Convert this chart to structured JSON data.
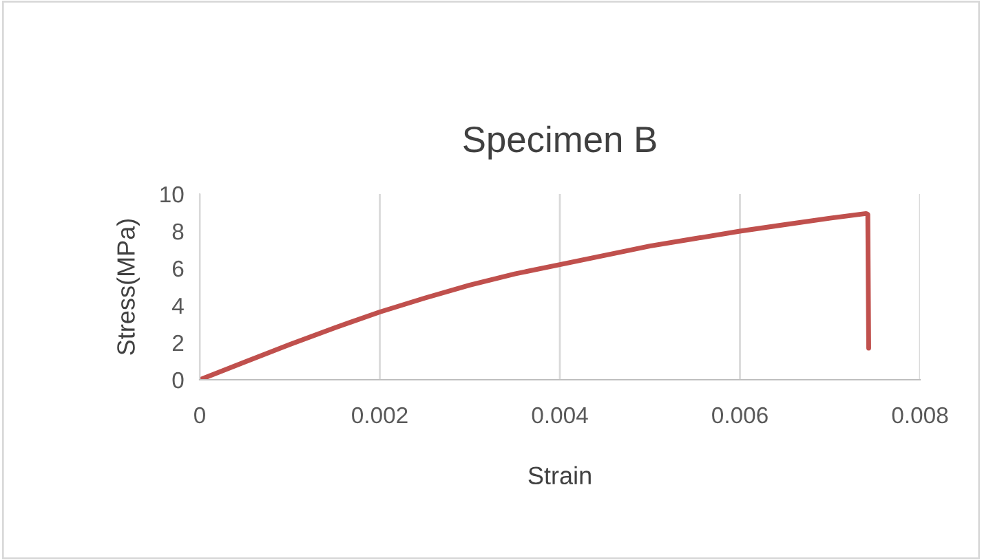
{
  "chart_data": {
    "type": "line",
    "title": "Specimen B",
    "xlabel": "Strain",
    "ylabel": "Stress(MPa)",
    "xlim": [
      0,
      0.008
    ],
    "xticks": [
      0,
      0.002,
      0.004,
      0.006,
      0.008
    ],
    "ylim": [
      0,
      10
    ],
    "yticks": [
      0,
      2,
      4,
      6,
      8,
      10
    ],
    "grid": "x",
    "legend": false,
    "series": [
      {
        "color": "#c0504d",
        "x": [
          0,
          0.0005,
          0.001,
          0.0015,
          0.002,
          0.0025,
          0.003,
          0.0035,
          0.004,
          0.0045,
          0.005,
          0.0055,
          0.006,
          0.0065,
          0.007,
          0.0074,
          0.00742,
          0.00743
        ],
        "values": [
          0,
          0.95,
          1.9,
          2.8,
          3.65,
          4.4,
          5.1,
          5.7,
          6.2,
          6.7,
          7.2,
          7.6,
          8.0,
          8.35,
          8.7,
          8.95,
          8.9,
          1.7
        ]
      }
    ]
  }
}
